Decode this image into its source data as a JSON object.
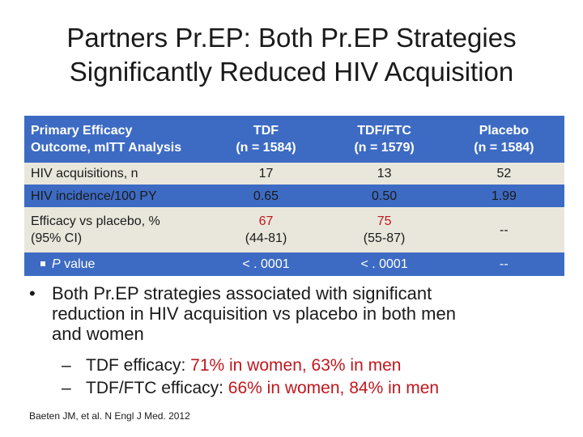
{
  "title": {
    "line1": "Partners Pr.EP: Both Pr.EP Strategies",
    "line2": "Significantly Reduced HIV Acquisition"
  },
  "table": {
    "header": {
      "col0_line1": "Primary Efficacy",
      "col0_line2": "Outcome, mITT Analysis",
      "col1_line1": "TDF",
      "col1_line2": "(n = 1584)",
      "col2_line1": "TDF/FTC",
      "col2_line2": "(n = 1579)",
      "col3_line1": "Placebo",
      "col3_line2": "(n = 1584)"
    },
    "rows": [
      {
        "label": "HIV acquisitions, n",
        "tdf": "17",
        "tdfftc": "13",
        "placebo": "52"
      },
      {
        "label": "HIV incidence/100 PY",
        "tdf": "0.65",
        "tdfftc": "0.50",
        "placebo": "1.99"
      },
      {
        "label_line1": "Efficacy vs placebo, %",
        "label_line2": "(95% CI)",
        "tdf_line1": "67",
        "tdf_line2": "(44-81)",
        "tdfftc_line1": "75",
        "tdfftc_line2": "(55-87)",
        "placebo": "--"
      },
      {
        "label_italic": "P",
        "label_rest": " value",
        "tdf": "< . 0001",
        "tdfftc": "< . 0001",
        "placebo": "--"
      }
    ]
  },
  "bullets": {
    "main_line1": "Both Pr.EP strategies associated with significant",
    "main_line2": "reduction in HIV acquisition vs placebo in both men",
    "main_line3": "and women",
    "sub1_prefix": "TDF efficacy: ",
    "sub1_value": "71% in women, 63% in men",
    "sub2_prefix": "TDF/FTC efficacy: ",
    "sub2_value": "66% in women, 84% in men"
  },
  "reference": "Baeten JM, et al. N Engl J Med. 2012",
  "colors": {
    "header_blue": "#3d6bc3",
    "row_beige": "#e9e7dc",
    "highlight_red": "#c0171d"
  }
}
